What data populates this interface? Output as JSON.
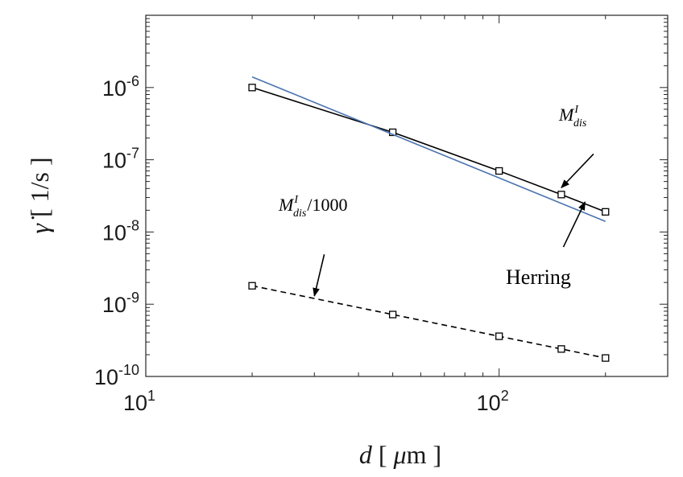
{
  "chart_data": {
    "type": "line",
    "x_scale": "log",
    "y_scale": "log",
    "xlim": [
      10,
      300
    ],
    "ylim": [
      1e-10,
      1e-05
    ],
    "x_ticks": [
      {
        "value": 10,
        "base": "10",
        "exp": "1"
      },
      {
        "value": 100,
        "base": "10",
        "exp": "2"
      }
    ],
    "y_ticks": [
      {
        "value": 1e-10,
        "base": "10",
        "exp": "-10"
      },
      {
        "value": 1e-09,
        "base": "10",
        "exp": "-9"
      },
      {
        "value": 1e-08,
        "base": "10",
        "exp": "-8"
      },
      {
        "value": 1e-07,
        "base": "10",
        "exp": "-7"
      },
      {
        "value": 1e-06,
        "base": "10",
        "exp": "-6"
      }
    ],
    "xlabel": {
      "var": "d",
      "unit_prefix": "μ",
      "unit": "m"
    },
    "ylabel": {
      "var": "γ̇",
      "unit": "1/s"
    },
    "grid": false,
    "series": [
      {
        "name": "M^I_dis",
        "color": "#000000",
        "dash": "solid",
        "marker": "square",
        "x": [
          20,
          50,
          100,
          150,
          200
        ],
        "y": [
          1e-06,
          2.4e-07,
          7e-08,
          3.3e-08,
          1.9e-08
        ]
      },
      {
        "name": "Herring",
        "color": "#4a74b0",
        "dash": "solid",
        "marker": "none",
        "x": [
          20,
          200
        ],
        "y": [
          1.4e-06,
          1.4e-08
        ]
      },
      {
        "name": "M^I_dis/1000",
        "color": "#000000",
        "dash": "dashed",
        "marker": "square",
        "x": [
          20,
          50,
          100,
          150,
          200
        ],
        "y": [
          1.8e-09,
          7.2e-10,
          3.6e-10,
          2.4e-10,
          1.8e-10
        ]
      }
    ],
    "annotations": [
      {
        "id": "mdis",
        "text_main": "M",
        "sup": "I",
        "sub": "dis",
        "suffix": "",
        "arrow_to": [
          150,
          4.1e-08
        ],
        "arrow_from": [
          185,
          1.2e-07
        ]
      },
      {
        "id": "herring",
        "text_main": "Herring",
        "sup": "",
        "sub": "",
        "suffix": "",
        "arrow_to": [
          175,
          2.6e-08
        ],
        "arrow_from": [
          152,
          6.2e-09
        ]
      },
      {
        "id": "mdis1000",
        "text_main": "M",
        "sup": "I",
        "sub": "dis",
        "suffix": "/1000",
        "arrow_to": [
          30,
          1.3e-09
        ],
        "arrow_from": [
          32,
          4.9e-09
        ]
      }
    ]
  }
}
